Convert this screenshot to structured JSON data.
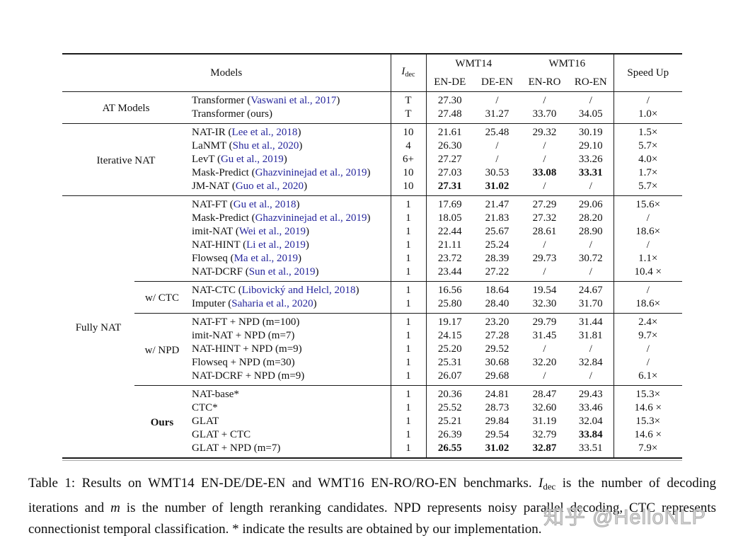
{
  "colors": {
    "citation": "#26269c",
    "rule": "#1b1b1b",
    "watermark": "#d1d1d1"
  },
  "table": {
    "header": {
      "models": "Models",
      "idec": {
        "main": "I",
        "sub": "dec"
      },
      "wmt14": "WMT14",
      "wmt16": "WMT16",
      "lang_cols": [
        "EN-DE",
        "DE-EN",
        "EN-RO",
        "RO-EN"
      ],
      "speedup": "Speed Up"
    },
    "groups": [
      {
        "label": "AT Models",
        "span_sublabel_col": true,
        "separator_above": false,
        "subgroups": [
          {
            "label": "",
            "rows": [
              {
                "m": "Transformer ",
                "c": "Vaswani et al., 2017",
                "i": "T",
                "v": [
                  "27.30",
                  "/",
                  "/",
                  "/"
                ],
                "b": [],
                "s": "/"
              },
              {
                "m": "Transformer (ours)",
                "c": "",
                "i": "T",
                "v": [
                  "27.48",
                  "31.27",
                  "33.70",
                  "34.05"
                ],
                "b": [],
                "s": "1.0×"
              }
            ]
          }
        ]
      },
      {
        "label": "Iterative NAT",
        "span_sublabel_col": true,
        "separator_above": true,
        "subgroups": [
          {
            "label": "",
            "rows": [
              {
                "m": "NAT-IR ",
                "c": "Lee et al., 2018",
                "i": "10",
                "v": [
                  "21.61",
                  "25.48",
                  "29.32",
                  "30.19"
                ],
                "b": [],
                "s": "1.5×"
              },
              {
                "m": "LaNMT ",
                "c": "Shu et al., 2020",
                "i": "4",
                "v": [
                  "26.30",
                  "/",
                  "/",
                  "29.10"
                ],
                "b": [],
                "s": "5.7×"
              },
              {
                "m": "LevT ",
                "c": "Gu et al., 2019",
                "i": "6+",
                "v": [
                  "27.27",
                  "/",
                  "/",
                  "33.26"
                ],
                "b": [],
                "s": "4.0×"
              },
              {
                "m": "Mask-Predict ",
                "c": "Ghazvininejad et al., 2019",
                "i": "10",
                "v": [
                  "27.03",
                  "30.53",
                  "33.08",
                  "33.31"
                ],
                "b": [
                  2,
                  3
                ],
                "s": "1.7×"
              },
              {
                "m": "JM-NAT ",
                "c": "Guo et al., 2020",
                "i": "10",
                "v": [
                  "27.31",
                  "31.02",
                  "/",
                  "/"
                ],
                "b": [
                  0,
                  1
                ],
                "s": "5.7×"
              }
            ]
          }
        ]
      },
      {
        "label": "Fully NAT",
        "span_sublabel_col": false,
        "separator_above": true,
        "subgroups": [
          {
            "label": "",
            "rows": [
              {
                "m": "NAT-FT ",
                "c": "Gu et al., 2018",
                "i": "1",
                "v": [
                  "17.69",
                  "21.47",
                  "27.29",
                  "29.06"
                ],
                "b": [],
                "s": "15.6×"
              },
              {
                "m": "Mask-Predict ",
                "c": "Ghazvininejad et al., 2019",
                "i": "1",
                "v": [
                  "18.05",
                  "21.83",
                  "27.32",
                  "28.20"
                ],
                "b": [],
                "s": "/"
              },
              {
                "m": "imit-NAT ",
                "c": "Wei et al., 2019",
                "i": "1",
                "v": [
                  "22.44",
                  "25.67",
                  "28.61",
                  "28.90"
                ],
                "b": [],
                "s": "18.6×"
              },
              {
                "m": "NAT-HINT ",
                "c": "Li et al., 2019",
                "i": "1",
                "v": [
                  "21.11",
                  "25.24",
                  "/",
                  "/"
                ],
                "b": [],
                "s": "/"
              },
              {
                "m": "Flowseq ",
                "c": "Ma et al., 2019",
                "i": "1",
                "v": [
                  "23.72",
                  "28.39",
                  "29.73",
                  "30.72"
                ],
                "b": [],
                "s": "1.1×"
              },
              {
                "m": "NAT-DCRF ",
                "c": "Sun et al., 2019",
                "i": "1",
                "v": [
                  "23.44",
                  "27.22",
                  "/",
                  "/"
                ],
                "b": [],
                "s": "10.4 ×"
              }
            ]
          },
          {
            "label": "w/ CTC",
            "rows": [
              {
                "m": "NAT-CTC ",
                "c": "Libovický and Helcl, 2018",
                "i": "1",
                "v": [
                  "16.56",
                  "18.64",
                  "19.54",
                  "24.67"
                ],
                "b": [],
                "s": "/"
              },
              {
                "m": "Imputer ",
                "c": "Saharia et al., 2020",
                "i": "1",
                "v": [
                  "25.80",
                  "28.40",
                  "32.30",
                  "31.70"
                ],
                "b": [],
                "s": "18.6×"
              }
            ]
          },
          {
            "label": "w/ NPD",
            "rows": [
              {
                "m": "NAT-FT + NPD (m=100)",
                "c": "",
                "i": "1",
                "v": [
                  "19.17",
                  "23.20",
                  "29.79",
                  "31.44"
                ],
                "b": [],
                "s": "2.4×"
              },
              {
                "m": "imit-NAT + NPD (m=7)",
                "c": "",
                "i": "1",
                "v": [
                  "24.15",
                  "27.28",
                  "31.45",
                  "31.81"
                ],
                "b": [],
                "s": "9.7×"
              },
              {
                "m": "NAT-HINT + NPD (m=9)",
                "c": "",
                "i": "1",
                "v": [
                  "25.20",
                  "29.52",
                  "/",
                  "/"
                ],
                "b": [],
                "s": "/"
              },
              {
                "m": "Flowseq + NPD (m=30)",
                "c": "",
                "i": "1",
                "v": [
                  "25.31",
                  "30.68",
                  "32.20",
                  "32.84"
                ],
                "b": [],
                "s": "/"
              },
              {
                "m": "NAT-DCRF + NPD (m=9)",
                "c": "",
                "i": "1",
                "v": [
                  "26.07",
                  "29.68",
                  "/",
                  "/"
                ],
                "b": [],
                "s": "6.1×"
              }
            ]
          },
          {
            "label": "Ours",
            "bold": true,
            "rows": [
              {
                "m": "NAT-base*",
                "c": "",
                "i": "1",
                "v": [
                  "20.36",
                  "24.81",
                  "28.47",
                  "29.43"
                ],
                "b": [],
                "s": "15.3×"
              },
              {
                "m": "CTC*",
                "c": "",
                "i": "1",
                "v": [
                  "25.52",
                  "28.73",
                  "32.60",
                  "33.46"
                ],
                "b": [],
                "s": "14.6 ×"
              },
              {
                "m": "GLAT",
                "c": "",
                "i": "1",
                "v": [
                  "25.21",
                  "29.84",
                  "31.19",
                  "32.04"
                ],
                "b": [],
                "s": "15.3×"
              },
              {
                "m": "GLAT + CTC",
                "c": "",
                "i": "1",
                "v": [
                  "26.39",
                  "29.54",
                  "32.79",
                  "33.84"
                ],
                "b": [
                  3
                ],
                "s": "14.6 ×"
              },
              {
                "m": "GLAT + NPD (m=7)",
                "c": "",
                "i": "1",
                "v": [
                  "26.55",
                  "31.02",
                  "32.87",
                  "33.51"
                ],
                "b": [
                  0,
                  1,
                  2
                ],
                "s": "7.9×"
              }
            ]
          }
        ]
      }
    ]
  },
  "caption": {
    "p1": "Table 1: Results on WMT14 EN-DE/DE-EN and WMT16 EN-RO/RO-EN benchmarks. ",
    "i_main": "I",
    "i_sub": "dec",
    "p2": " is the number of decoding iterations and ",
    "m_var": "m",
    "p3": " is the number of length reranking candidates. NPD represents noisy parallel decoding, CTC represents connectionist temporal classification. * indicate the results are obtained by our implementation."
  },
  "watermark": {
    "text": "知乎 @HelloNLP"
  }
}
